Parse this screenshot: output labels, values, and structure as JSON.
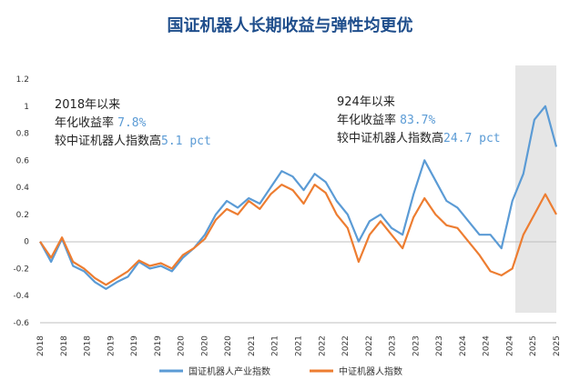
{
  "chart_data": {
    "type": "line",
    "title": "国证机器人长期收益与弹性均更优",
    "ylim": [
      -0.6,
      1.2
    ],
    "y_ticks": [
      "1.2",
      "1",
      "0.8",
      "0.6",
      "0.4",
      "0.2",
      "0",
      "-0.2",
      "-0.4",
      "-0.6"
    ],
    "x_ticks": [
      "2018",
      "2018",
      "2018",
      "2019",
      "2019",
      "2019",
      "2020",
      "2020",
      "2020",
      "2021",
      "2021",
      "2021",
      "2022",
      "2022",
      "2022",
      "2023",
      "2023",
      "2023",
      "2024",
      "2024",
      "2024",
      "2025",
      "2025"
    ],
    "shaded_region_label": "924以来",
    "series": [
      {
        "name": "国证机器人产业指数",
        "color": "#5b9bd5",
        "values": [
          0.0,
          -0.15,
          0.02,
          -0.18,
          -0.22,
          -0.3,
          -0.35,
          -0.3,
          -0.26,
          -0.15,
          -0.2,
          -0.18,
          -0.22,
          -0.12,
          -0.05,
          0.05,
          0.2,
          0.3,
          0.25,
          0.32,
          0.28,
          0.4,
          0.52,
          0.48,
          0.38,
          0.5,
          0.44,
          0.3,
          0.2,
          0.0,
          0.15,
          0.2,
          0.1,
          0.05,
          0.35,
          0.6,
          0.45,
          0.3,
          0.25,
          0.15,
          0.05,
          0.05,
          -0.05,
          0.3,
          0.5,
          0.9,
          1.0,
          0.7
        ]
      },
      {
        "name": "中证机器人指数",
        "color": "#ed7d31",
        "values": [
          0.0,
          -0.12,
          0.03,
          -0.15,
          -0.2,
          -0.27,
          -0.32,
          -0.27,
          -0.22,
          -0.14,
          -0.18,
          -0.16,
          -0.2,
          -0.1,
          -0.05,
          0.02,
          0.16,
          0.24,
          0.2,
          0.3,
          0.24,
          0.35,
          0.42,
          0.38,
          0.28,
          0.42,
          0.36,
          0.2,
          0.1,
          -0.15,
          0.05,
          0.15,
          0.05,
          -0.05,
          0.18,
          0.32,
          0.2,
          0.12,
          0.1,
          0.0,
          -0.1,
          -0.22,
          -0.25,
          -0.2,
          0.05,
          0.2,
          0.35,
          0.2
        ]
      }
    ]
  },
  "annotations": {
    "left": {
      "l1": "2018年以来",
      "l2a": "年化收益率 ",
      "l2v": "7.8%",
      "l3a": "较中证机器人指数高",
      "l3v": "5.1 pct"
    },
    "right": {
      "l1": "924年以来",
      "l2a": "年化收益率 ",
      "l2v": "83.7%",
      "l3a": "较中证机器人指数高",
      "l3v": "24.7 pct"
    }
  }
}
